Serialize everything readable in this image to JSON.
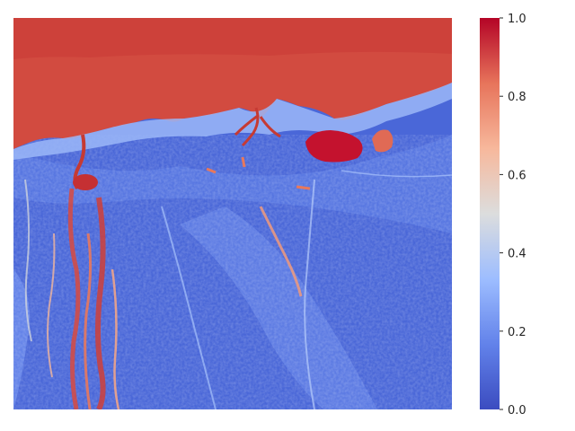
{
  "figure": {
    "type": "heatmap-image",
    "description_of_content": "",
    "colormap": "coolwarm",
    "colormap_stops": [
      "#3b4cc0",
      "#7396f5",
      "#b0cbfc",
      "#dcdddd",
      "#f6bfa6",
      "#ea7b60",
      "#b40426"
    ]
  },
  "colorbar": {
    "range": [
      0.0,
      1.0
    ],
    "ticks": [
      {
        "value": 1.0,
        "label": "1.0"
      },
      {
        "value": 0.8,
        "label": "0.8"
      },
      {
        "value": 0.6,
        "label": "0.6"
      },
      {
        "value": 0.4,
        "label": "0.4"
      },
      {
        "value": 0.2,
        "label": "0.2"
      },
      {
        "value": 0.0,
        "label": "0.0"
      }
    ]
  }
}
